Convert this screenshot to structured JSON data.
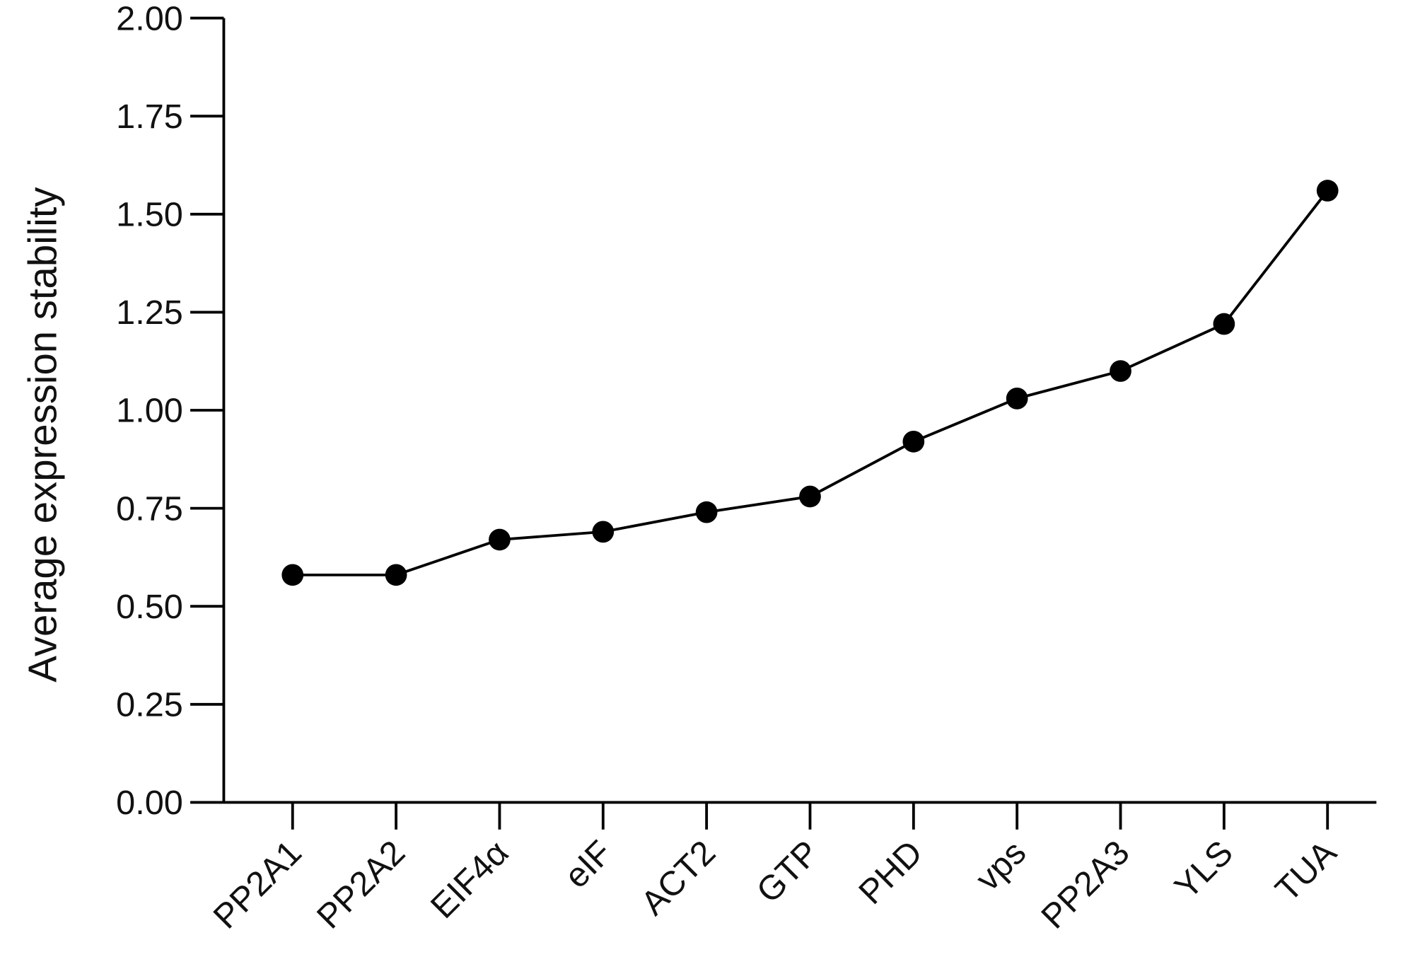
{
  "chart_data": {
    "type": "line",
    "y_label": "Average expression stability",
    "categories": [
      "PP2A1",
      "PP2A2",
      "EIF4α",
      "eIF",
      "ACT2",
      "GTP",
      "PHD",
      "vps",
      "PP2A3",
      "YLS",
      "TUA"
    ],
    "values": [
      0.58,
      0.58,
      0.67,
      0.69,
      0.74,
      0.78,
      0.92,
      1.03,
      1.1,
      1.22,
      1.56
    ],
    "color": "#000000",
    "ylim": [
      0,
      2
    ],
    "yticks": [
      {
        "value": 0,
        "label": "0.00"
      },
      {
        "value": 0.25,
        "label": "0.25"
      },
      {
        "value": 0.5,
        "label": "0.50"
      },
      {
        "value": 0.75,
        "label": "0.75"
      },
      {
        "value": 1,
        "label": "1.00"
      },
      {
        "value": 1.25,
        "label": "1.25"
      },
      {
        "value": 1.5,
        "label": "1.50"
      },
      {
        "value": 1.75,
        "label": "1.75"
      },
      {
        "value": 2,
        "label": "2.00"
      }
    ]
  }
}
